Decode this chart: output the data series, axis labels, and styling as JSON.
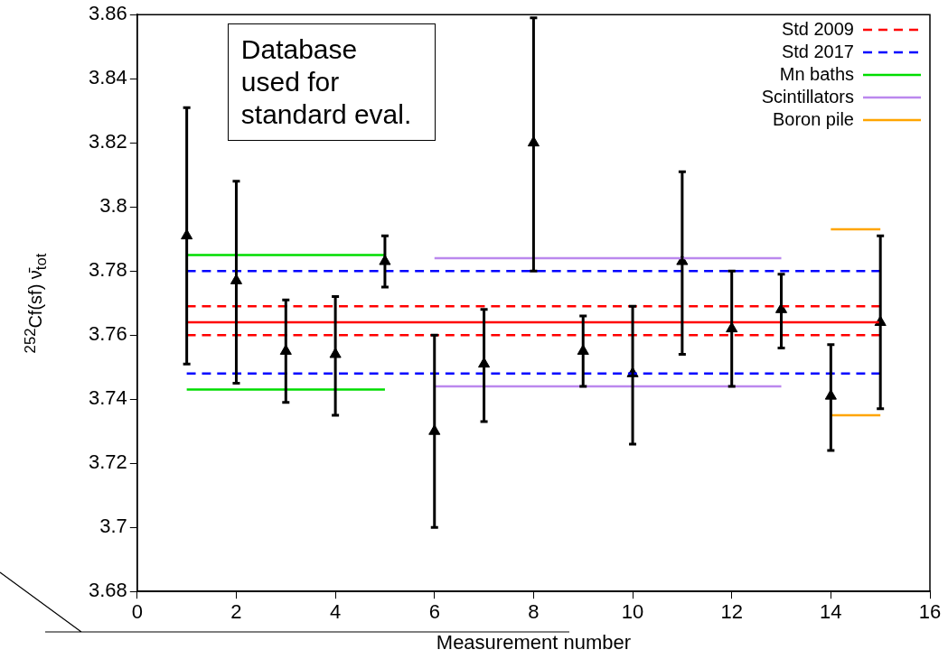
{
  "chart_data": {
    "type": "scatter",
    "xlabel": "Measurement number",
    "ylabel": "$^{252}$Cf(sf) ν̄$_{tot}$",
    "xlim": [
      0,
      16
    ],
    "xticks": [
      0,
      2,
      4,
      6,
      8,
      10,
      12,
      14,
      16
    ],
    "ylim": [
      3.68,
      3.86
    ],
    "yticks": [
      3.68,
      3.7,
      3.72,
      3.74,
      3.76,
      3.78,
      3.8,
      3.82,
      3.84,
      3.86
    ],
    "grid": false,
    "legend": "top right",
    "marker": "none",
    "annotations": [
      "Database used for standard eval."
    ],
    "series": [
      {
        "type": "line",
        "name": "Std 2009",
        "color": "#ff0000",
        "line_style": "dashed",
        "x": [
          1,
          15
        ],
        "values": [
          3.769,
          3.769
        ]
      },
      {
        "type": "line",
        "color": "#ff0000",
        "line_style": "dashed",
        "x": [
          1,
          15
        ],
        "values": [
          3.76,
          3.76
        ]
      },
      {
        "type": "line",
        "name": "Std 2017",
        "color": "#0000ff",
        "line_style": "dashed",
        "x": [
          1,
          15
        ],
        "values": [
          3.78,
          3.78
        ]
      },
      {
        "type": "line",
        "color": "#0000ff",
        "line_style": "dashed",
        "x": [
          1,
          15
        ],
        "values": [
          3.748,
          3.748
        ]
      },
      {
        "type": "line",
        "name": "Mn baths",
        "color": "#00dd00",
        "line_style": "solid",
        "x": [
          1,
          5
        ],
        "values": [
          3.785,
          3.785
        ]
      },
      {
        "type": "line",
        "color": "#00dd00",
        "line_style": "solid",
        "x": [
          1,
          5
        ],
        "values": [
          3.743,
          3.743
        ]
      },
      {
        "type": "line",
        "name": "Scintillators",
        "color": "#bb88ee",
        "line_style": "solid",
        "x": [
          6,
          13
        ],
        "values": [
          3.784,
          3.784
        ]
      },
      {
        "type": "line",
        "color": "#bb88ee",
        "line_style": "solid",
        "x": [
          6,
          13
        ],
        "values": [
          3.744,
          3.744
        ]
      },
      {
        "type": "line",
        "name": "Boron pile",
        "color": "#ffa500",
        "line_style": "solid",
        "x": [
          14,
          15
        ],
        "values": [
          3.793,
          3.793
        ]
      },
      {
        "type": "line",
        "color": "#ffa500",
        "line_style": "solid",
        "x": [
          14,
          15
        ],
        "values": [
          3.735,
          3.735
        ]
      },
      {
        "type": "line",
        "color": "#ff0000",
        "line_style": "solid",
        "x": [
          1,
          15
        ],
        "values": [
          3.764,
          3.764
        ]
      },
      {
        "color": "#000000",
        "marker": "triangle",
        "x": [
          1,
          2,
          3,
          4,
          5,
          6,
          7,
          8,
          9,
          10,
          11,
          12,
          13,
          14,
          15
        ],
        "values": [
          3.791,
          3.777,
          3.755,
          3.754,
          3.783,
          3.73,
          3.751,
          3.82,
          3.755,
          3.748,
          3.783,
          3.762,
          3.768,
          3.741,
          3.764
        ],
        "errors": [
          [
            3.751,
            3.831
          ],
          [
            3.745,
            3.808
          ],
          [
            3.739,
            3.771
          ],
          [
            3.735,
            3.772
          ],
          [
            3.775,
            3.791
          ],
          [
            3.7,
            3.76
          ],
          [
            3.733,
            3.768
          ],
          [
            3.78,
            3.859
          ],
          [
            3.744,
            3.766
          ],
          [
            3.726,
            3.769
          ],
          [
            3.754,
            3.811
          ],
          [
            3.744,
            3.78
          ],
          [
            3.756,
            3.779
          ],
          [
            3.724,
            3.757
          ],
          [
            3.737,
            3.791
          ]
        ]
      }
    ]
  }
}
